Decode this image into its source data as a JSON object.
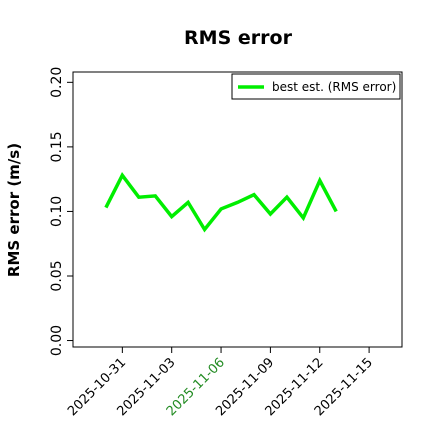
{
  "chart_data": {
    "type": "line",
    "title": "RMS error",
    "y_label": "RMS error (m/s)",
    "x": [
      "2025-10-30",
      "2025-10-31",
      "2025-11-01",
      "2025-11-02",
      "2025-11-03",
      "2025-11-04",
      "2025-11-05",
      "2025-11-06",
      "2025-11-07",
      "2025-11-08",
      "2025-11-09",
      "2025-11-10",
      "2025-11-11",
      "2025-11-12",
      "2025-11-13"
    ],
    "series": [
      {
        "name": "best est. (RMS error)",
        "color": "#00ee00",
        "values": [
          0.103,
          0.128,
          0.111,
          0.112,
          0.096,
          0.107,
          0.086,
          0.102,
          0.107,
          0.113,
          0.098,
          0.111,
          0.095,
          0.124,
          0.1
        ]
      }
    ],
    "xlim": [
      "2025-10-28",
      "2025-11-17"
    ],
    "xticks": [
      "2025-10-31",
      "2025-11-03",
      "2025-11-06",
      "2025-11-09",
      "2025-11-12",
      "2025-11-15"
    ],
    "xtick_colors": [
      "#000000",
      "#000000",
      "#228b22",
      "#000000",
      "#000000",
      "#000000"
    ],
    "ylim": [
      -0.005,
      0.208
    ],
    "yticks": [
      {
        "value": 0,
        "label": "0.00"
      },
      {
        "value": 0.05,
        "label": "0.05"
      },
      {
        "value": 0.1,
        "label": "0.10"
      },
      0.15,
      {
        "value": 0.2,
        "label": "0.20"
      }
    ],
    "grid": false,
    "legend": "upper right"
  }
}
